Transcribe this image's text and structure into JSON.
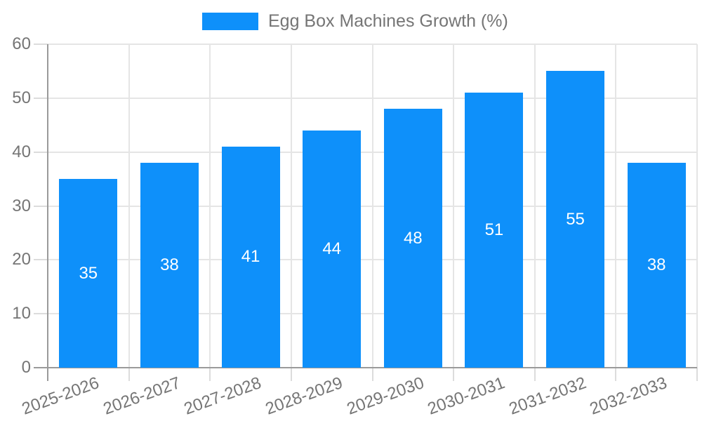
{
  "legend": {
    "label": "Egg Box Machines Growth (%)"
  },
  "chart_data": {
    "type": "bar",
    "title": "Egg Box Machines Growth (%)",
    "series_name": "Egg Box Machines Growth (%)",
    "categories": [
      "2025-2026",
      "2026-2027",
      "2027-2028",
      "2028-2029",
      "2029-2030",
      "2030-2031",
      "2031-2032",
      "2032-2033"
    ],
    "values": [
      35,
      38,
      41,
      44,
      48,
      51,
      55,
      38
    ],
    "value_labels": [
      "35",
      "38",
      "41",
      "44",
      "48",
      "51",
      "55",
      "38"
    ],
    "xlabel": "",
    "ylabel": "",
    "ylim": [
      0,
      60
    ],
    "yticks": [
      0,
      10,
      20,
      30,
      40,
      50,
      60
    ],
    "grid": true,
    "legend_position": "top",
    "colors": {
      "bar": "#0e90fa",
      "value_label": "#ffffff",
      "tick_label": "#757575",
      "legend_label": "#757575",
      "grid_line": "#e5e5e5",
      "tick_mark": "#dcdcdc",
      "axis_line": "#9a9a9a",
      "background": "#ffffff"
    }
  }
}
